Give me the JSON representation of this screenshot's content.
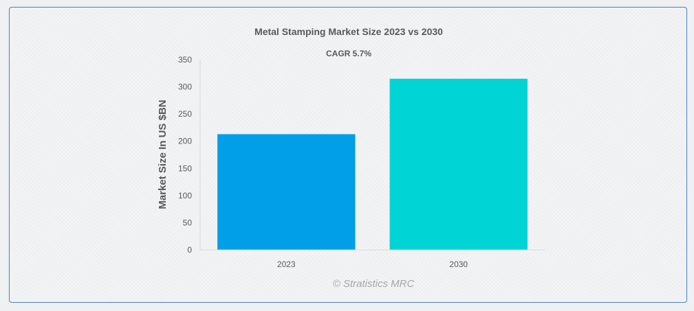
{
  "chart_data": {
    "type": "bar",
    "title": "Metal Stamping Market Size 2023 vs 2030",
    "subtitle": "CAGR 5.7%",
    "categories": [
      "2023",
      "2030"
    ],
    "values": [
      213,
      315
    ],
    "colors": [
      "#009fe8",
      "#00d4d4"
    ],
    "ylabel": "Market Size In US $BN",
    "xlabel": "",
    "ylim": [
      0,
      350
    ],
    "yticks": [
      0,
      50,
      100,
      150,
      200,
      250,
      300,
      350
    ],
    "grid": false,
    "legend": "none"
  },
  "watermark": "© Stratistics MRC"
}
